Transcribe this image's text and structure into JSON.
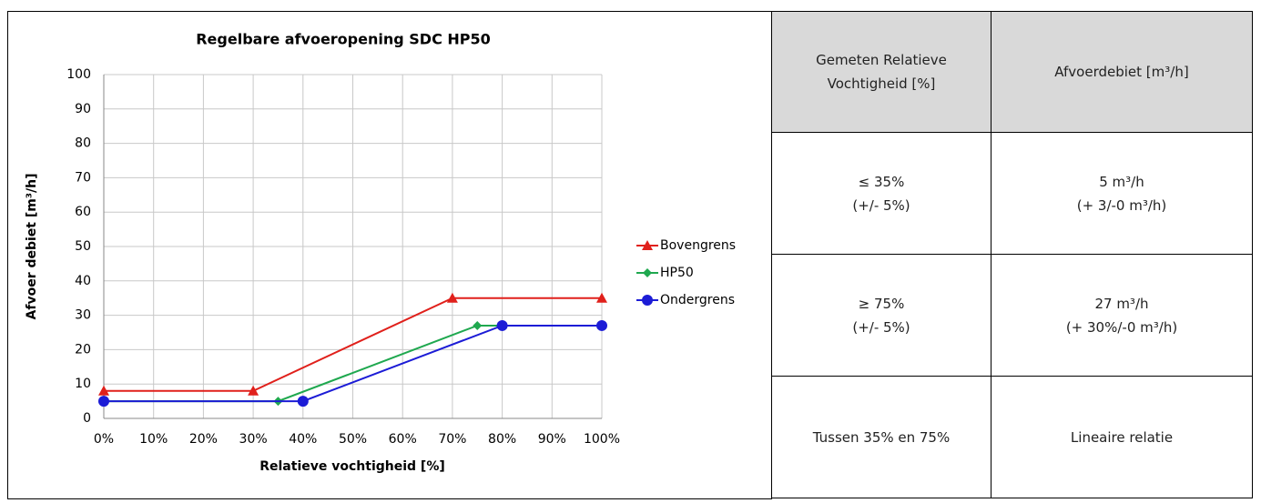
{
  "chart_data": {
    "type": "line",
    "title": "Regelbare afvoeropening SDC HP50",
    "xlabel": "Relatieve vochtigheid [%]",
    "ylabel": "Afvoer debiet [m³/h]",
    "xlim": [
      0,
      100
    ],
    "xticks": [
      {
        "value": 0,
        "label": "0%"
      },
      {
        "value": 10,
        "label": "10%"
      },
      {
        "value": 20,
        "label": "20%"
      },
      {
        "value": 30,
        "label": "30%"
      },
      {
        "value": 40,
        "label": "40%"
      },
      {
        "value": 50,
        "label": "50%"
      },
      {
        "value": 60,
        "label": "60%"
      },
      {
        "value": 70,
        "label": "70%"
      },
      {
        "value": 80,
        "label": "80%"
      },
      {
        "value": 90,
        "label": "90%"
      },
      {
        "value": 100,
        "label": "100%"
      }
    ],
    "ylim": [
      0,
      100
    ],
    "yticks": [
      0,
      10,
      20,
      30,
      40,
      50,
      60,
      70,
      80,
      90,
      100
    ],
    "grid": true,
    "legend": "right",
    "series": [
      {
        "name": "Bovengrens",
        "color": "#e0201b",
        "marker": "triangle",
        "x": [
          0,
          30,
          70,
          100
        ],
        "values": [
          8,
          8,
          35,
          35
        ]
      },
      {
        "name": "HP50",
        "color": "#1fa84f",
        "marker": "diamond",
        "x": [
          0,
          35,
          75,
          100
        ],
        "values": [
          5,
          5,
          27,
          27
        ]
      },
      {
        "name": "Ondergrens",
        "color": "#1c1cd6",
        "marker": "circle",
        "x": [
          0,
          40,
          80,
          100
        ],
        "values": [
          5,
          5,
          27,
          27
        ]
      }
    ]
  },
  "table": {
    "header": [
      "Gemeten Relatieve Vochtigheid [%]",
      "Afvoerdebiet [m³/h]"
    ],
    "rows": [
      [
        [
          "≤ 35%",
          "(+/- 5%)"
        ],
        [
          "5 m³/h",
          "(+ 3/-0 m³/h)"
        ]
      ],
      [
        [
          "≥ 75%",
          "(+/- 5%)"
        ],
        [
          "27 m³/h",
          "(+ 30%/-0 m³/h)"
        ]
      ],
      [
        [
          "Tussen 35% en 75%"
        ],
        [
          "Lineaire relatie"
        ]
      ]
    ]
  }
}
